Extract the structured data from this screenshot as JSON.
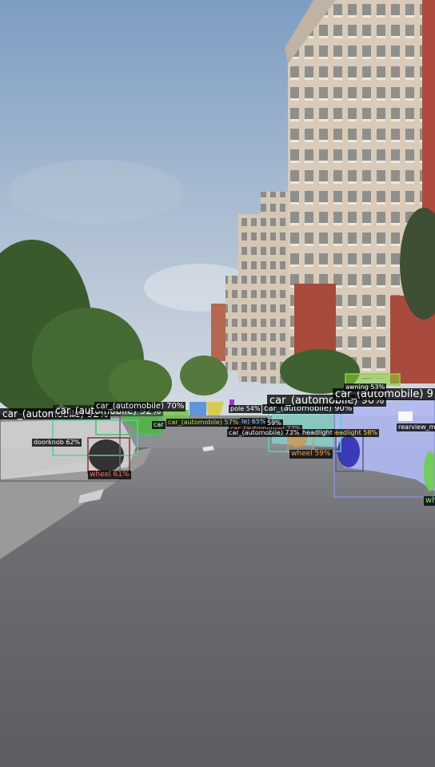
{
  "scene": {
    "description_colors": {
      "sky_top": "#7f9fc6",
      "sky_bottom": "#c9d5df",
      "road": "#646568",
      "building": "#d9ccbb",
      "brick": "#a84b3c",
      "trees": "#3c5a2e"
    }
  },
  "detections": [
    {
      "label": "car_(automobile) 92%",
      "color": "#e23a3a",
      "mask": "#c8c8c8"
    },
    {
      "label": "car_(automobile) 70%",
      "color": "#ffffff",
      "mask": "#58b548"
    },
    {
      "label": "car_(automobile) 57%",
      "color": "#b6e05a",
      "mask": "#6ec04a"
    },
    {
      "label": "car",
      "color": "#ffffff",
      "mask": "#6ec04a"
    },
    {
      "label": "pole 54%",
      "color": "#ffffff",
      "mask": "#b030d8"
    },
    {
      "label": "car_(automobile) 90%",
      "color": "#ffffff",
      "mask": "#8ad0c8"
    },
    {
      "label": "car_(automobile) 90%",
      "color": "#ffffff",
      "mask": "#a9b3f0"
    },
    {
      "label": "car_(automobile) 9",
      "color": "#ffffff",
      "mask": "#b8c0f2"
    },
    {
      "label": "awning 53%",
      "color": "#ffffff",
      "mask": "#8cd43a"
    },
    {
      "label": "doorknob 62%",
      "color": "#ffffff",
      "mask": "#3a3aa8"
    },
    {
      "label": "wheel 61%",
      "color": "#ff6a6a",
      "mask": "#222222"
    },
    {
      "label": "wheel 59%",
      "color": "#ff9a3c",
      "mask": "#c89a5a"
    },
    {
      "label": "wheel",
      "color": "#6aff6a",
      "mask": "#6ad04a"
    },
    {
      "label": "headlight 58%",
      "color": "#ffd84a",
      "mask": "#4848b0"
    },
    {
      "label": "headlight",
      "color": "#ffffff",
      "mask": "#9a3ad8"
    },
    {
      "label": "rearview_m",
      "color": "#ffffff",
      "mask": "#ffffff"
    },
    {
      "label": "car_(automobile) 77%",
      "color": "#ff9a9a",
      "mask": "#6ec04a"
    },
    {
      "label": "car_(automobile) 73%",
      "color": "#ffffff",
      "mask": "#6ec04a"
    },
    {
      "label": "le) 65%",
      "color": "#8ad0ff",
      "mask": "#3a9ad8"
    },
    {
      "label": "59%",
      "color": "#ffffff",
      "mask": "#d8c83a"
    }
  ]
}
